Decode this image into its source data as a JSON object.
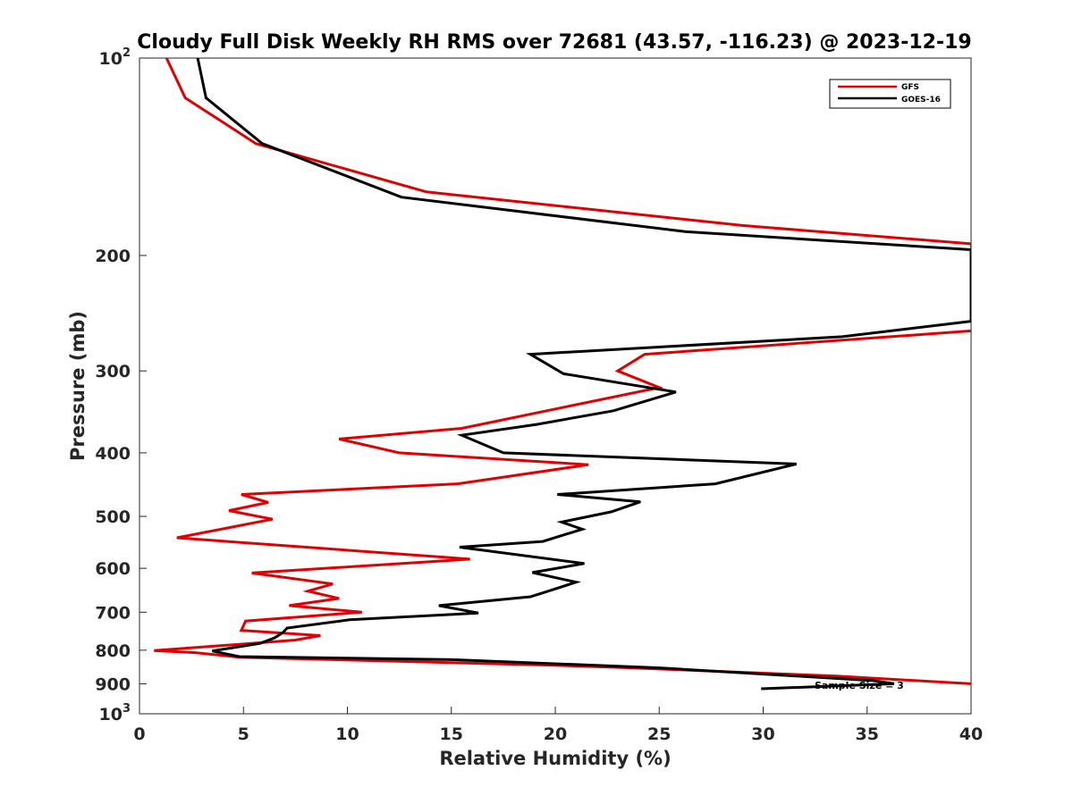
{
  "chart_data": {
    "type": "line",
    "title": "Cloudy Full Disk Weekly RH RMS over 72681 (43.57, -116.23) @ 2023-12-19",
    "xlabel": "Relative Humidity (%)",
    "ylabel": "Pressure (mb)",
    "xlim": [
      0,
      40
    ],
    "ylim": [
      100,
      1000
    ],
    "y_scale": "log",
    "y_reversed": true,
    "grid": false,
    "legend_position": "top-right",
    "x_ticks": [
      "0",
      "5",
      "10",
      "15",
      "20",
      "25",
      "30",
      "35",
      "40"
    ],
    "y_ticks": [
      {
        "value": 100,
        "base": "10",
        "exp": "2"
      },
      {
        "value": 200,
        "label": "200"
      },
      {
        "value": 300,
        "label": "300"
      },
      {
        "value": 400,
        "label": "400"
      },
      {
        "value": 500,
        "label": "500"
      },
      {
        "value": 600,
        "label": "600"
      },
      {
        "value": 700,
        "label": "700"
      },
      {
        "value": 800,
        "label": "800"
      },
      {
        "value": 900,
        "label": "900"
      },
      {
        "value": 1000,
        "base": "10",
        "exp": "3"
      }
    ],
    "annotation": "Sample Size = 3",
    "series": [
      {
        "name": "GFS",
        "color": "#e00000",
        "points": [
          [
            1.3,
            100
          ],
          [
            2.2,
            115
          ],
          [
            5.6,
            135
          ],
          [
            13.8,
            160
          ],
          [
            29.0,
            180
          ],
          [
            40.0,
            192
          ],
          [
            40.5,
            260
          ],
          [
            24.3,
            283
          ],
          [
            23.0,
            300
          ],
          [
            25.0,
            318
          ],
          [
            15.5,
            367
          ],
          [
            9.6,
            381
          ],
          [
            12.5,
            400
          ],
          [
            21.6,
            417
          ],
          [
            15.3,
            446
          ],
          [
            4.9,
            463
          ],
          [
            6.2,
            476
          ],
          [
            4.3,
            490
          ],
          [
            6.4,
            505
          ],
          [
            1.8,
            539
          ],
          [
            15.9,
            581
          ],
          [
            5.4,
            610
          ],
          [
            9.3,
            634
          ],
          [
            8.1,
            650
          ],
          [
            9.6,
            667
          ],
          [
            7.2,
            684
          ],
          [
            10.7,
            700
          ],
          [
            5.1,
            722
          ],
          [
            4.9,
            746
          ],
          [
            8.7,
            760
          ],
          [
            7.5,
            772
          ],
          [
            0.7,
            801
          ],
          [
            2.7,
            807
          ],
          [
            4.8,
            820
          ],
          [
            19.8,
            843
          ],
          [
            23.2,
            850
          ],
          [
            33.5,
            876
          ],
          [
            40.0,
            900
          ]
        ]
      },
      {
        "name": "GOES-16",
        "color": "#000000",
        "points": [
          [
            2.8,
            100
          ],
          [
            3.2,
            115
          ],
          [
            5.9,
            135
          ],
          [
            12.6,
            163
          ],
          [
            26.3,
            184
          ],
          [
            40.0,
            196
          ],
          [
            40.0,
            252
          ],
          [
            33.8,
            266
          ],
          [
            18.8,
            283
          ],
          [
            20.4,
            303
          ],
          [
            25.8,
            323
          ],
          [
            22.8,
            345
          ],
          [
            19.1,
            362
          ],
          [
            15.5,
            376
          ],
          [
            17.5,
            400
          ],
          [
            31.6,
            416
          ],
          [
            27.7,
            446
          ],
          [
            20.1,
            463
          ],
          [
            24.1,
            475
          ],
          [
            22.7,
            492
          ],
          [
            20.3,
            510
          ],
          [
            21.3,
            523
          ],
          [
            19.4,
            546
          ],
          [
            15.4,
            557
          ],
          [
            21.4,
            590
          ],
          [
            18.9,
            609
          ],
          [
            21.0,
            630
          ],
          [
            19.6,
            651
          ],
          [
            18.8,
            663
          ],
          [
            14.4,
            684
          ],
          [
            16.3,
            702
          ],
          [
            10.1,
            719
          ],
          [
            7.1,
            740
          ],
          [
            6.9,
            752
          ],
          [
            6.5,
            766
          ],
          [
            5.8,
            781
          ],
          [
            3.5,
            802
          ],
          [
            4.8,
            818
          ],
          [
            15.0,
            827
          ],
          [
            25.0,
            851
          ],
          [
            35.3,
            890
          ],
          [
            36.3,
            900
          ],
          [
            29.9,
            916
          ]
        ]
      }
    ]
  }
}
